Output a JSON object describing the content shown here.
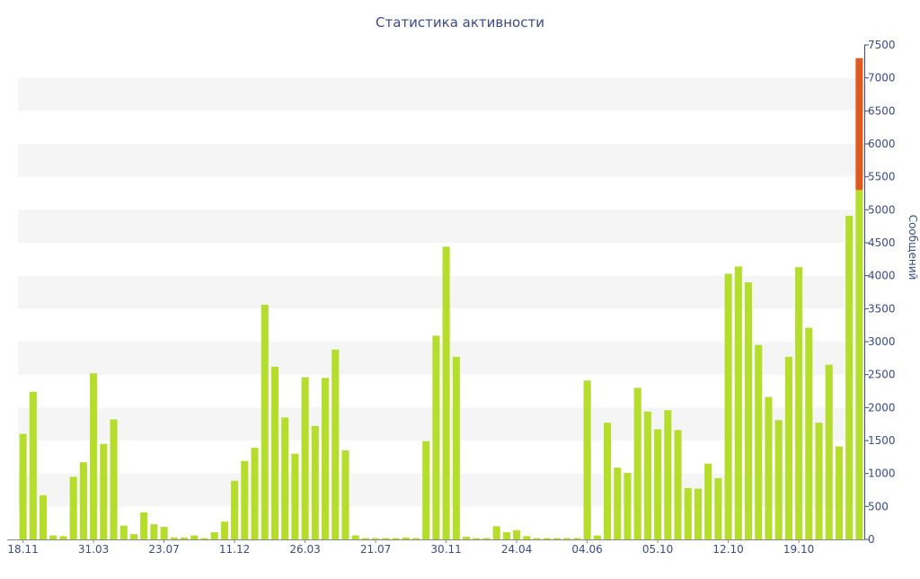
{
  "chart_data": {
    "type": "bar",
    "title": "Статистика активности",
    "ylabel": "Сообщений",
    "xlabel": "",
    "ylim": [
      0,
      7500
    ],
    "yticks": [
      0,
      500,
      1000,
      1500,
      2000,
      2500,
      3000,
      3500,
      4000,
      4500,
      5000,
      5500,
      6000,
      6500,
      7000,
      7500
    ],
    "y_axis_side": "right",
    "grid": "alternating horizontal bands",
    "x_tick_labels": [
      {
        "index": 0,
        "label": "18.11"
      },
      {
        "index": 7,
        "label": "31.03"
      },
      {
        "index": 14,
        "label": "23.07"
      },
      {
        "index": 21,
        "label": "11.12"
      },
      {
        "index": 28,
        "label": "26.03"
      },
      {
        "index": 35,
        "label": "21.07"
      },
      {
        "index": 42,
        "label": "30.11"
      },
      {
        "index": 49,
        "label": "24.04"
      },
      {
        "index": 56,
        "label": "04.06"
      },
      {
        "index": 63,
        "label": "05.10"
      },
      {
        "index": 70,
        "label": "12.10"
      },
      {
        "index": 77,
        "label": "19.10"
      }
    ],
    "series": [
      {
        "color": "#b5dd2c",
        "values": [
          1600,
          2240,
          670,
          60,
          50,
          950,
          1170,
          2520,
          1450,
          1820,
          210,
          80,
          410,
          230,
          190,
          30,
          30,
          60,
          20,
          110,
          270,
          890,
          1190,
          1390,
          3560,
          2620,
          1850,
          1300,
          2460,
          1720,
          2450,
          2880,
          1350,
          60,
          20,
          20,
          20,
          20,
          30,
          20,
          1490,
          3090,
          4440,
          2770,
          40,
          20,
          20,
          200,
          110,
          140,
          50,
          20,
          20,
          20,
          20,
          20,
          2410,
          60,
          1770,
          1090,
          1010,
          2300,
          1940,
          1670,
          1960,
          1660,
          780,
          770,
          1150,
          930,
          4030,
          4140,
          3900,
          2950,
          2160,
          1810,
          2770,
          4130,
          3210,
          1770,
          2650,
          1410,
          4910,
          5300
        ],
        "max_marker_color": "#e05a20",
        "max_marker_range": [
          5300,
          7300
        ]
      }
    ]
  }
}
